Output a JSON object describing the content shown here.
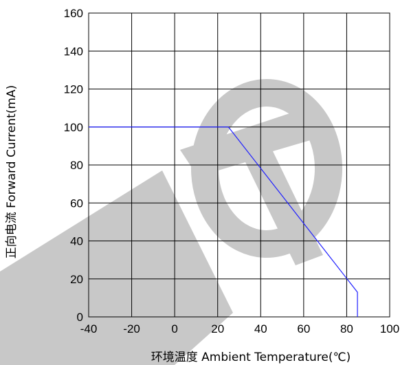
{
  "chart_data": {
    "type": "line",
    "xlabel": "环境温度  Ambient Temperature(℃)",
    "ylabel": "正向电流  Forward Current(mA)",
    "xlim": [
      -40,
      100
    ],
    "ylim": [
      0,
      160
    ],
    "xticks": [
      -40,
      -20,
      0,
      20,
      40,
      60,
      80,
      100
    ],
    "yticks": [
      0,
      20,
      40,
      60,
      80,
      100,
      120,
      140,
      160
    ],
    "x_tick_labels": [
      "-40",
      "-20",
      "0",
      "20",
      "40",
      "60",
      "80",
      "100"
    ],
    "y_tick_labels": [
      "0",
      "20",
      "40",
      "60",
      "80",
      "100",
      "120",
      "140",
      "160"
    ],
    "grid": true,
    "series": [
      {
        "color": "#1f1fff",
        "points": [
          [
            -40,
            100
          ],
          [
            25,
            100
          ],
          [
            85,
            13
          ],
          [
            85,
            0
          ]
        ]
      }
    ],
    "watermark": {
      "text": "DTO",
      "color": "#c8c8c8"
    }
  }
}
